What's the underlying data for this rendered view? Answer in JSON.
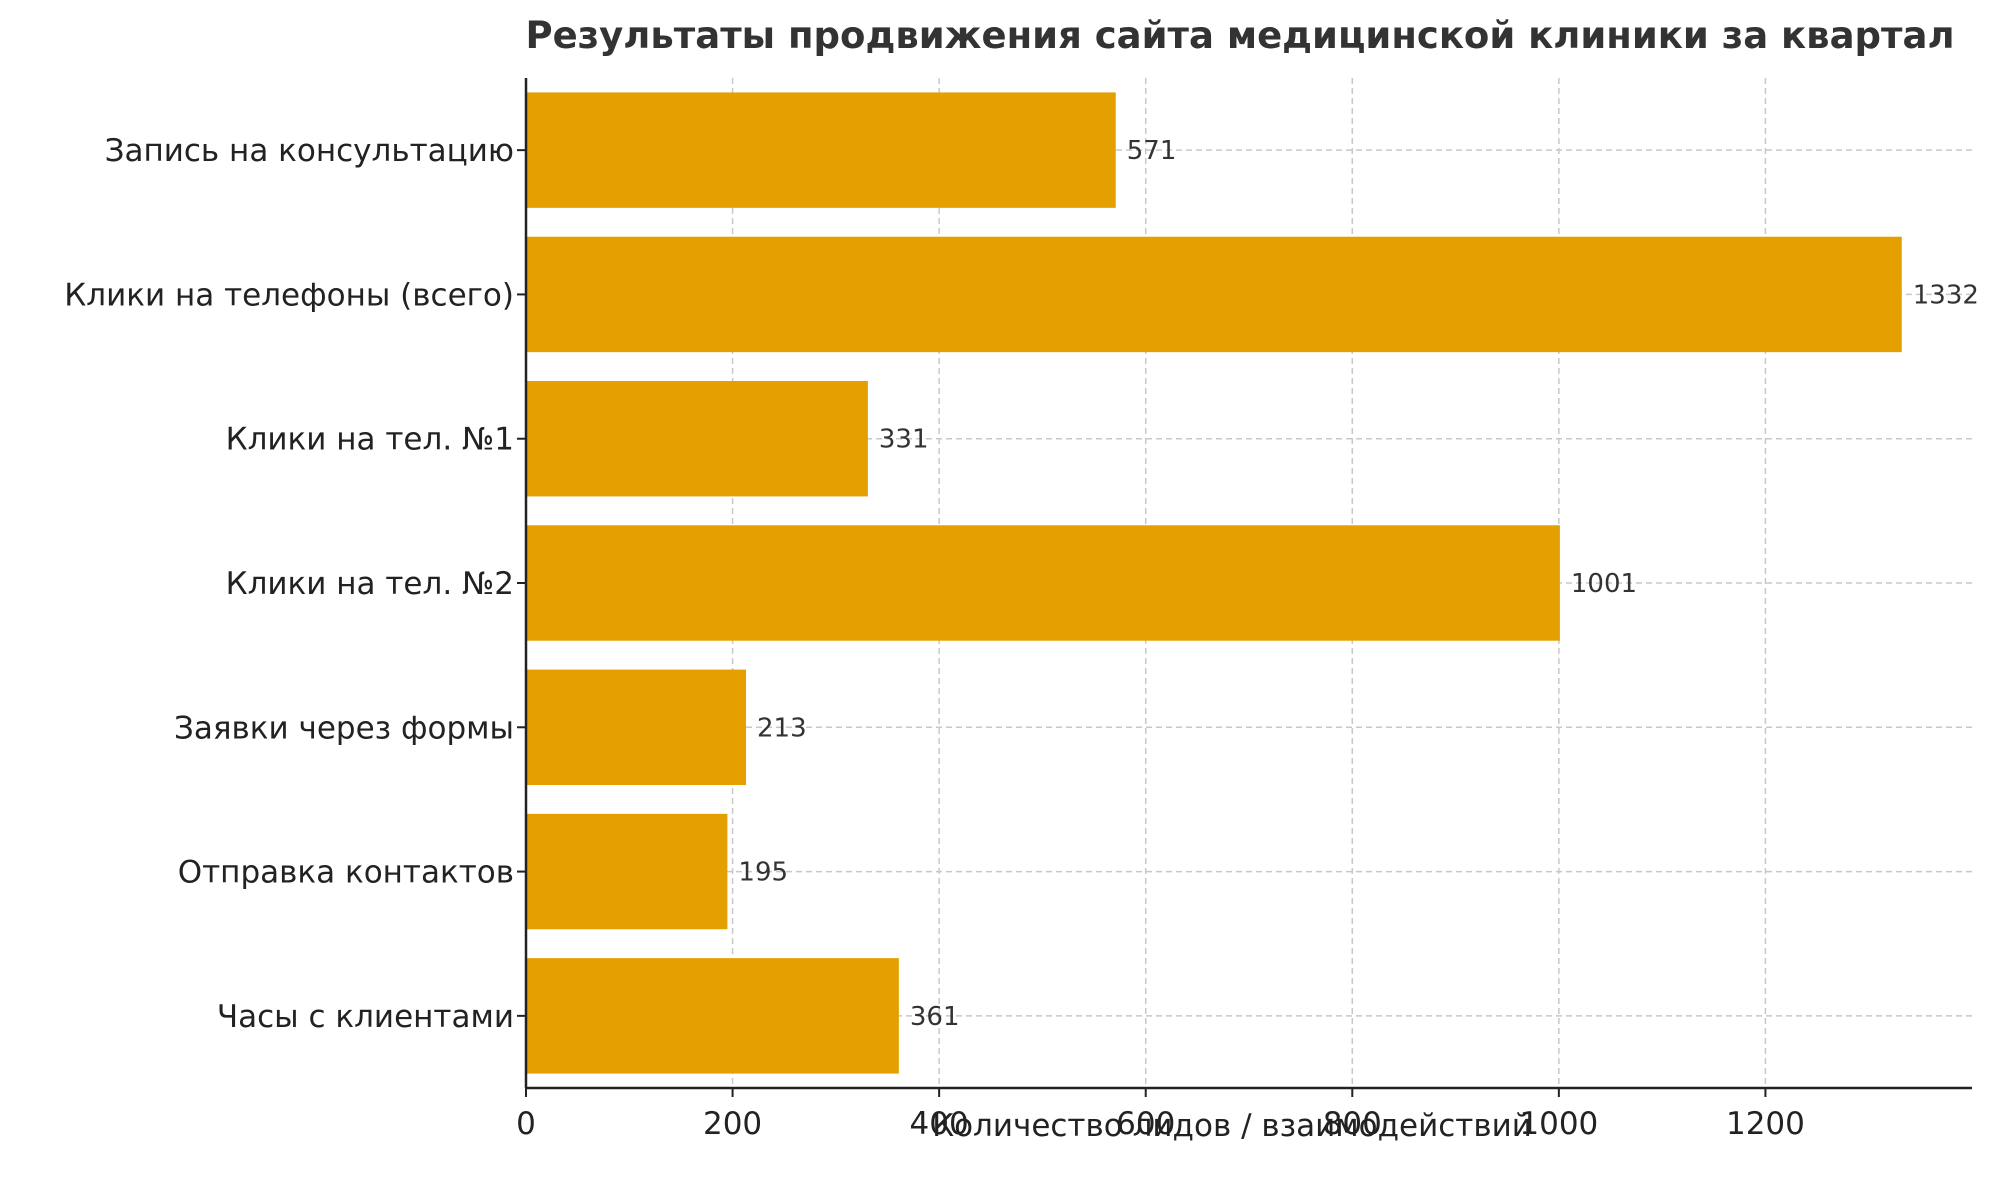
{
  "chart_data": {
    "type": "bar",
    "orientation": "horizontal",
    "title": "Результаты продвижения сайта медицинской клиники за квартал",
    "xlabel": "Количество лидов / взаимодействий",
    "ylabel": "",
    "categories": [
      "Запись на консультацию",
      "Клики на телефоны (всего)",
      "Клики на тел. №1",
      "Клики на тел. №2",
      "Заявки через формы",
      "Отправка контактов",
      "Часы с клиентами"
    ],
    "values": [
      571,
      1332,
      331,
      1001,
      213,
      195,
      361
    ],
    "xlim": [
      0,
      1400
    ],
    "xticks": [
      0,
      200,
      400,
      600,
      800,
      1000,
      1200
    ],
    "grid": true,
    "bar_color": "#E3A000",
    "data_labels": true
  }
}
